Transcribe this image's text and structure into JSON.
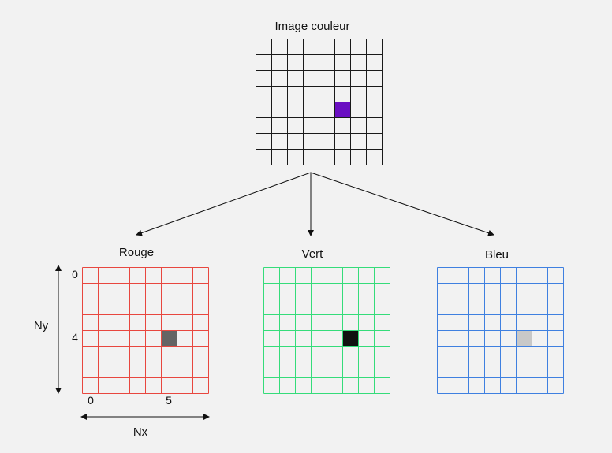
{
  "diagram": {
    "grid_size": 8,
    "source": {
      "title": "Image couleur",
      "line_color": "#1a1a1a",
      "highlight": {
        "row": 4,
        "col": 5,
        "color": "#6a0fc2"
      }
    },
    "channels": [
      {
        "id": "rouge",
        "title": "Rouge",
        "line_color": "#e8473f",
        "cell_value_color": "#646464"
      },
      {
        "id": "vert",
        "title": "Vert",
        "line_color": "#35dc7a",
        "cell_value_color": "#111111"
      },
      {
        "id": "bleu",
        "title": "Bleu",
        "line_color": "#3f80e0",
        "cell_value_color": "#c8c8c8"
      }
    ],
    "axes": {
      "y_label": "Ny",
      "x_label": "Nx",
      "y_ticks": [
        "0",
        "4"
      ],
      "x_ticks": [
        "0",
        "5"
      ]
    }
  }
}
